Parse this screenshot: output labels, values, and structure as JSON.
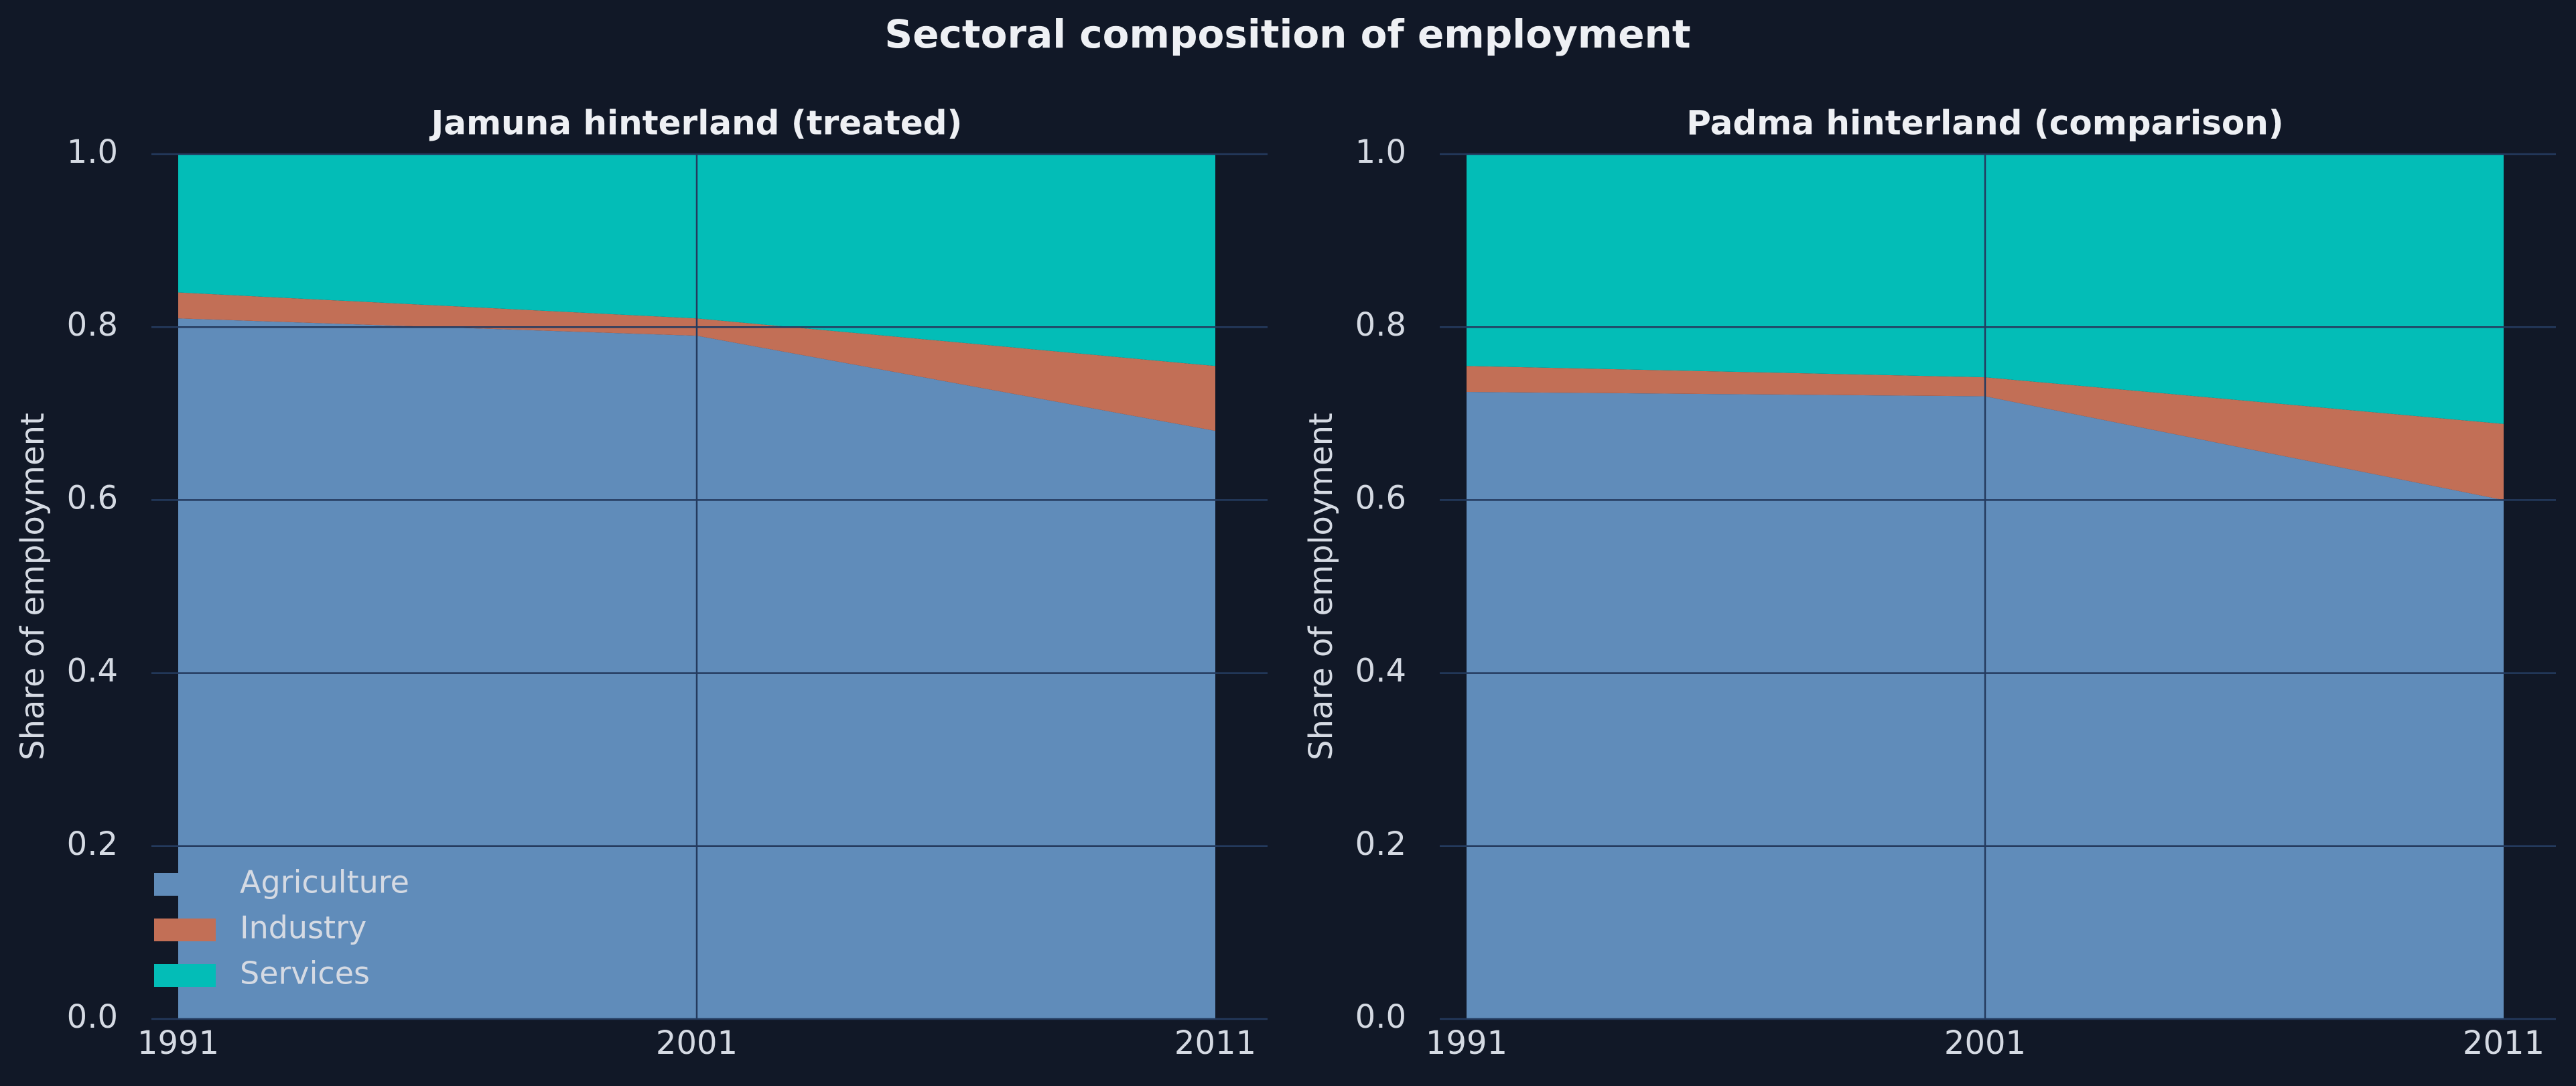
{
  "chart_data": {
    "suptitle": "Sectoral composition of employment",
    "colors": {
      "background": "#111827",
      "Agriculture": "#608cba",
      "Industry": "#c26f56",
      "Services": "#03bdb7",
      "text": "#d5dae3",
      "title_text": "#eef0f4",
      "grid": "#243a5e"
    },
    "legend": {
      "placement": "lower-left",
      "entries": [
        "Agriculture",
        "Industry",
        "Services"
      ]
    },
    "charts": [
      {
        "type": "area",
        "stacked": true,
        "title": "Jamuna hinterland (treated)",
        "xlabel": "",
        "ylabel": "Share of employment",
        "x": [
          "1991",
          "2001",
          "2011"
        ],
        "ylim": [
          0,
          1.0
        ],
        "yticks": [
          "0.0",
          "0.2",
          "0.4",
          "0.6",
          "0.8",
          "1.0"
        ],
        "grid": true,
        "show_legend": true,
        "series": [
          {
            "name": "Agriculture",
            "values": [
              0.81,
              0.79,
              0.68
            ]
          },
          {
            "name": "Industry",
            "values": [
              0.03,
              0.02,
              0.075
            ]
          },
          {
            "name": "Services",
            "values": [
              0.16,
              0.19,
              0.245
            ]
          }
        ]
      },
      {
        "type": "area",
        "stacked": true,
        "title": "Padma hinterland (comparison)",
        "xlabel": "",
        "ylabel": "Share of employment",
        "x": [
          "1991",
          "2001",
          "2011"
        ],
        "ylim": [
          0,
          1.0
        ],
        "yticks": [
          "0.0",
          "0.2",
          "0.4",
          "0.6",
          "0.8",
          "1.0"
        ],
        "grid": true,
        "show_legend": false,
        "series": [
          {
            "name": "Agriculture",
            "values": [
              0.725,
              0.72,
              0.6
            ]
          },
          {
            "name": "Industry",
            "values": [
              0.03,
              0.022,
              0.088
            ]
          },
          {
            "name": "Services",
            "values": [
              0.245,
              0.258,
              0.312
            ]
          }
        ]
      }
    ]
  }
}
